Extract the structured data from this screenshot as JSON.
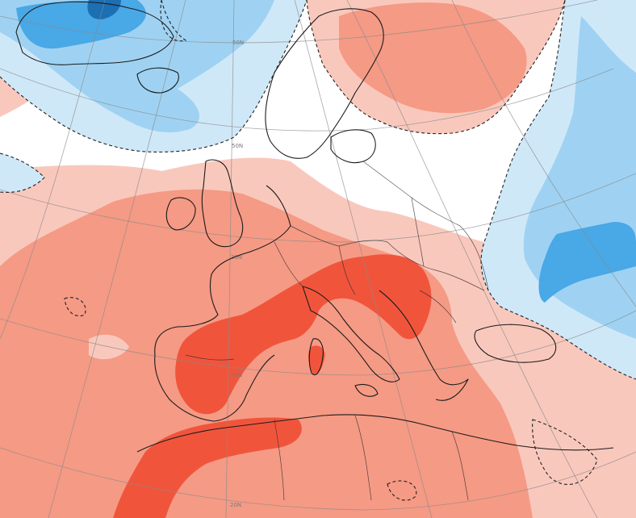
{
  "map": {
    "latitude_labels": [
      "50N",
      "30N",
      "40N",
      "50N",
      "20N"
    ],
    "colors": {
      "strong_warm": "#f0553c",
      "warm": "#f59a85",
      "weak_warm": "#f9c8bc",
      "neutral": "#ffffff",
      "weak_cold": "#cfe8f8",
      "cold": "#9fd2f2",
      "strong_cold": "#49a8e6",
      "very_cold": "#1c6fb3"
    },
    "icons": [
      "map-grid",
      "coastline",
      "country-borders",
      "zero-anomaly-contour"
    ]
  }
}
